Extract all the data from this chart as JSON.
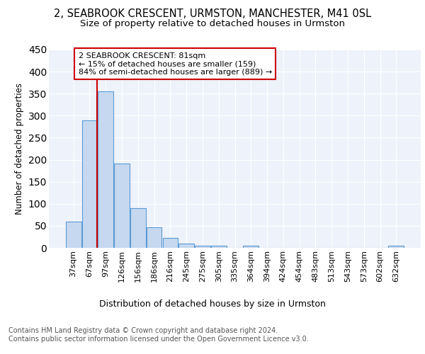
{
  "title1": "2, SEABROOK CRESCENT, URMSTON, MANCHESTER, M41 0SL",
  "title2": "Size of property relative to detached houses in Urmston",
  "xlabel": "Distribution of detached houses by size in Urmston",
  "ylabel": "Number of detached properties",
  "bar_labels": [
    "37sqm",
    "67sqm",
    "97sqm",
    "126sqm",
    "156sqm",
    "186sqm",
    "216sqm",
    "245sqm",
    "275sqm",
    "305sqm",
    "335sqm",
    "364sqm",
    "394sqm",
    "424sqm",
    "454sqm",
    "483sqm",
    "513sqm",
    "543sqm",
    "573sqm",
    "602sqm",
    "632sqm"
  ],
  "bar_heights": [
    60,
    290,
    355,
    192,
    90,
    47,
    22,
    10,
    5,
    5,
    0,
    5,
    0,
    0,
    0,
    0,
    0,
    0,
    0,
    0,
    5
  ],
  "bar_color": "#c5d8f0",
  "bar_edge_color": "#5b9bd5",
  "property_line_x": 1.47,
  "annotation_line1": "2 SEABROOK CRESCENT: 81sqm",
  "annotation_line2": "← 15% of detached houses are smaller (159)",
  "annotation_line3": "84% of semi-detached houses are larger (889) →",
  "annotation_box_color": "#ffffff",
  "annotation_box_edge_color": "#cc0000",
  "red_line_color": "#cc0000",
  "footer_text": "Contains HM Land Registry data © Crown copyright and database right 2024.\nContains public sector information licensed under the Open Government Licence v3.0.",
  "ylim": [
    0,
    450
  ],
  "background_color": "#eef2fa",
  "grid_color": "#ffffff",
  "title1_fontsize": 10.5,
  "title2_fontsize": 9.5,
  "xlabel_fontsize": 9,
  "ylabel_fontsize": 8.5,
  "tick_fontsize": 8,
  "footer_fontsize": 7,
  "fig_bg": "#ffffff"
}
